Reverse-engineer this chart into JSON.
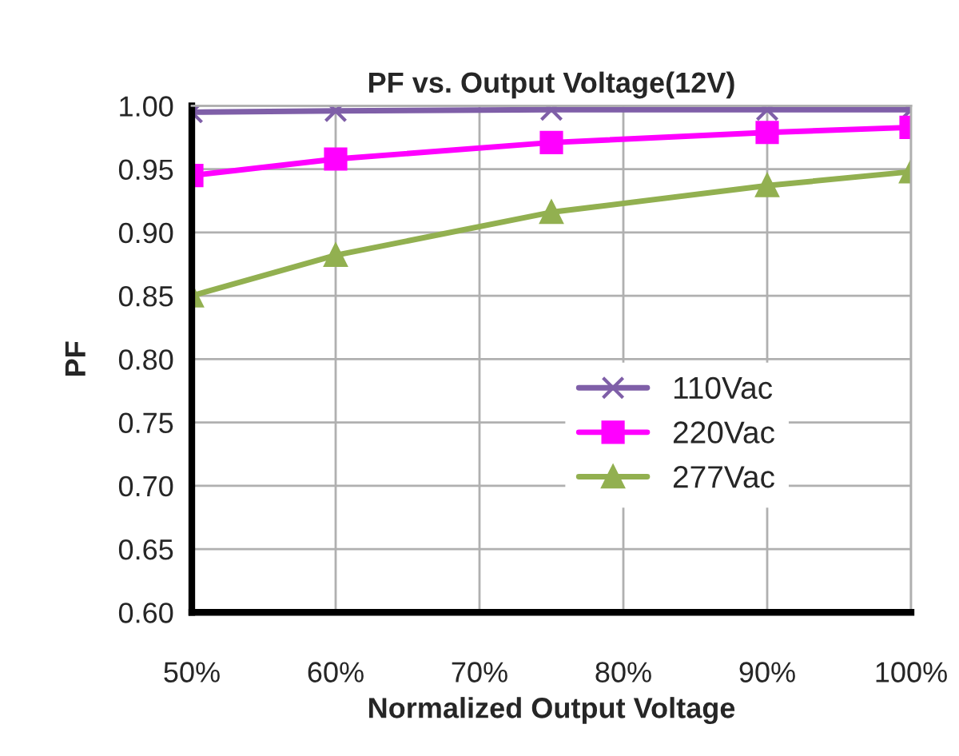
{
  "chart_data": {
    "type": "line",
    "title": "PF vs. Output Voltage(12V)",
    "xlabel": "Normalized Output Voltage",
    "ylabel": "PF",
    "x": [
      50,
      60,
      75,
      90,
      100
    ],
    "series": [
      {
        "name": "110Vac",
        "color": "#7f5fa8",
        "marker": "cross",
        "values": [
          0.995,
          0.996,
          0.997,
          0.997,
          0.997
        ]
      },
      {
        "name": "220Vac",
        "color": "#ff00ff",
        "marker": "square",
        "values": [
          0.945,
          0.958,
          0.971,
          0.979,
          0.983
        ]
      },
      {
        "name": "277Vac",
        "color": "#92b050",
        "marker": "triangle",
        "values": [
          0.85,
          0.882,
          0.916,
          0.937,
          0.948
        ]
      }
    ],
    "xlim": [
      50,
      100
    ],
    "xticks": [
      {
        "value": 50,
        "label": "50%"
      },
      {
        "value": 60,
        "label": "60%"
      },
      {
        "value": 70,
        "label": "70%"
      },
      {
        "value": 80,
        "label": "80%"
      },
      {
        "value": 90,
        "label": "90%"
      },
      {
        "value": 100,
        "label": "100%"
      }
    ],
    "ylim": [
      0.6,
      1.0
    ],
    "yticks": [
      {
        "value": 0.6,
        "label": "0.60"
      },
      {
        "value": 0.65,
        "label": "0.65"
      },
      {
        "value": 0.7,
        "label": "0.70"
      },
      {
        "value": 0.75,
        "label": "0.75"
      },
      {
        "value": 0.8,
        "label": "0.80"
      },
      {
        "value": 0.85,
        "label": "0.85"
      },
      {
        "value": 0.9,
        "label": "0.90"
      },
      {
        "value": 0.95,
        "label": "0.95"
      },
      {
        "value": 1.0,
        "label": "1.00"
      }
    ],
    "grid": true,
    "legend": "right",
    "line_style": "solid"
  }
}
